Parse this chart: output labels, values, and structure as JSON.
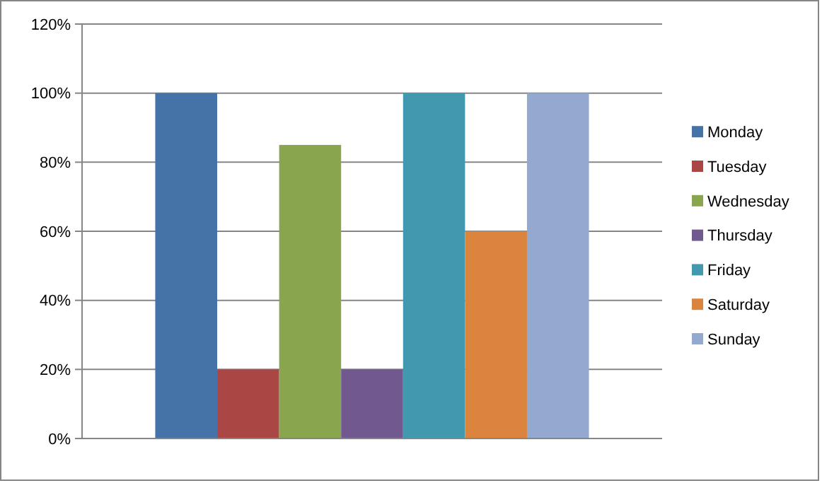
{
  "chart_data": {
    "type": "bar",
    "categories": [
      null
    ],
    "series": [
      {
        "name": "Monday",
        "color": "#4572a7",
        "values": [
          100
        ]
      },
      {
        "name": "Tuesday",
        "color": "#aa4643",
        "values": [
          20
        ]
      },
      {
        "name": "Wednesday",
        "color": "#89a54e",
        "values": [
          85
        ]
      },
      {
        "name": "Thursday",
        "color": "#71588f",
        "values": [
          20
        ]
      },
      {
        "name": "Friday",
        "color": "#4198af",
        "values": [
          100
        ]
      },
      {
        "name": "Saturday",
        "color": "#db843d",
        "values": [
          60
        ]
      },
      {
        "name": "Sunday",
        "color": "#93a9cf",
        "values": [
          100
        ]
      }
    ],
    "ylim": [
      0,
      120
    ],
    "yticks": [
      {
        "value": 0,
        "label": "0%"
      },
      {
        "value": 20,
        "label": "20%"
      },
      {
        "value": 40,
        "label": "40%"
      },
      {
        "value": 60,
        "label": "60%"
      },
      {
        "value": 80,
        "label": "80%"
      },
      {
        "value": 100,
        "label": "100%"
      },
      {
        "value": 120,
        "label": "120%"
      }
    ],
    "grid": "y",
    "legend": "right"
  }
}
